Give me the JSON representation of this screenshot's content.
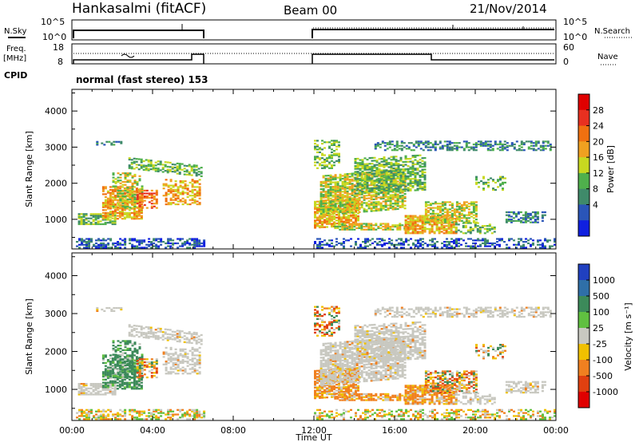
{
  "header": {
    "station": "Hankasalmi (fitACF)",
    "beam": "Beam 00",
    "date": "21/Nov/2014"
  },
  "noise_panel": {
    "left_label": "N.Sky",
    "right_label": "N.Search",
    "left_ticks": [
      "10^5",
      "10^0"
    ],
    "right_ticks": [
      "10^5",
      "10^0"
    ]
  },
  "freq_panel": {
    "left_label_1": "Freq.",
    "left_label_2": "[MHz]",
    "right_label": "Nave",
    "left_ticks": [
      "18",
      "8"
    ],
    "right_ticks": [
      "60",
      "0"
    ]
  },
  "cpid": {
    "label": "CPID",
    "value": "normal (fast stereo) 153"
  },
  "colors": {
    "power_scale": [
      "#1020e0",
      "#2a55b8",
      "#3f8a6a",
      "#4fb04c",
      "#c8d820",
      "#f0a020",
      "#f07010",
      "#e83020",
      "#e00000"
    ],
    "velocity_scale": [
      "#2040c0",
      "#2f6fa8",
      "#3c8a5a",
      "#60c040",
      "#c8c8c0",
      "#f0c000",
      "#f08020",
      "#e04010",
      "#e00000"
    ],
    "ground_scatter": "#c8c8c0"
  },
  "chart_data": [
    {
      "type": "heatmap",
      "name": "power",
      "ylabel": "Slant Range [km]",
      "yticks": [
        "1000",
        "2000",
        "3000",
        "4000"
      ],
      "ylim": [
        180,
        4600
      ],
      "xlim_hours": [
        0,
        24
      ],
      "colorbar_label": "Power [dB]",
      "colorbar_ticks": [
        "4",
        "8",
        "12",
        "16",
        "20",
        "24",
        "28"
      ],
      "colorbar_range": [
        0,
        32
      ],
      "data_gap_ut": [
        "06:30",
        "12:00"
      ]
    },
    {
      "type": "heatmap",
      "name": "velocity",
      "ylabel": "Slant Range [km]",
      "yticks": [
        "1000",
        "2000",
        "3000",
        "4000"
      ],
      "ylim": [
        180,
        4600
      ],
      "xlabel": "Time UT",
      "xticks": [
        "00:00",
        "04:00",
        "08:00",
        "12:00",
        "16:00",
        "20:00",
        "00:00"
      ],
      "colorbar_label": "Velocity [m s⁻¹]",
      "colorbar_ticks": [
        "1000",
        "500",
        "100",
        "25",
        "-25",
        "-100",
        "-500",
        "-1000"
      ],
      "data_gap_ut": [
        "06:30",
        "12:00"
      ]
    }
  ]
}
